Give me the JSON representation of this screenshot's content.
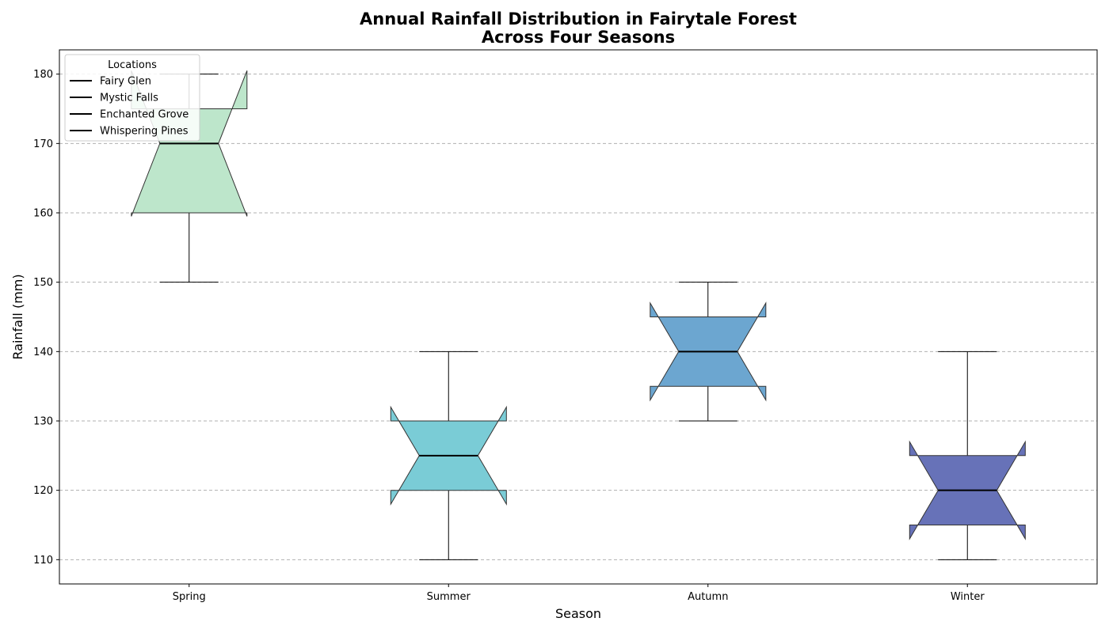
{
  "chart_data": {
    "type": "boxplot",
    "title_lines": [
      "Annual Rainfall Distribution in Fairytale Forest",
      "Across Four Seasons"
    ],
    "xlabel": "Season",
    "ylabel": "Rainfall (mm)",
    "ylim": [
      106.5,
      183.5
    ],
    "yticks": [
      110,
      120,
      130,
      140,
      150,
      160,
      170,
      180
    ],
    "grid": "y-dashed",
    "legend": {
      "title": "Locations",
      "placement": "top-left",
      "entries": [
        "Fairy Glen",
        "Mystic Falls",
        "Enchanted Grove",
        "Whispering Pines"
      ]
    },
    "categories": [
      "Spring",
      "Summer",
      "Autumn",
      "Winter"
    ],
    "boxes": [
      {
        "name": "Spring",
        "whisker_low": 150,
        "q1": 160,
        "median": 170,
        "q3": 175,
        "whisker_high": 180,
        "notch_low": 159.5,
        "notch_high": 180.5,
        "color": "#bde6cb"
      },
      {
        "name": "Summer",
        "whisker_low": 110,
        "q1": 120,
        "median": 125,
        "q3": 130,
        "whisker_high": 140,
        "notch_low": 118,
        "notch_high": 132,
        "color": "#7accd6"
      },
      {
        "name": "Autumn",
        "whisker_low": 130,
        "q1": 135,
        "median": 140,
        "q3": 145,
        "whisker_high": 150,
        "notch_low": 133,
        "notch_high": 147,
        "color": "#6ca6d0"
      },
      {
        "name": "Winter",
        "whisker_low": 110,
        "q1": 115,
        "median": 120,
        "q3": 125,
        "whisker_high": 140,
        "notch_low": 113,
        "notch_high": 127,
        "color": "#6772b8"
      }
    ]
  }
}
